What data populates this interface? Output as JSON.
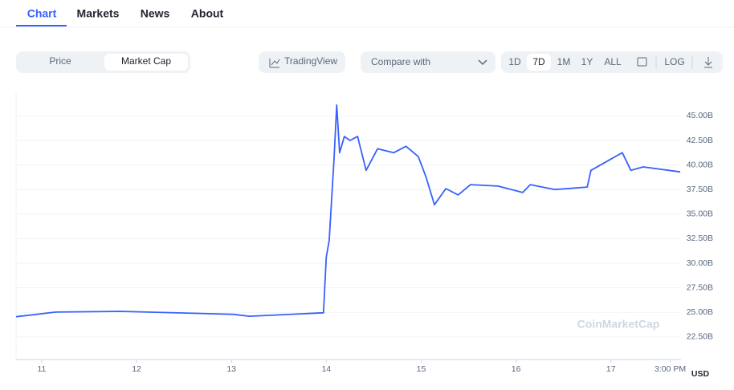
{
  "nav": {
    "tabs": [
      "Chart",
      "Markets",
      "News",
      "About"
    ]
  },
  "controls": {
    "toggle": [
      "Price",
      "Market Cap"
    ],
    "tradingview": "TradingView",
    "compare": "Compare with",
    "ranges": [
      "1D",
      "7D",
      "1M",
      "1Y",
      "ALL"
    ],
    "log": "LOG"
  },
  "chart_data": {
    "type": "line",
    "watermark": "CoinMarketCap",
    "currency": "USD",
    "series": [
      {
        "color": "#3861fb",
        "x": [
          10.73,
          11.15,
          11.83,
          13.02,
          13.19,
          13.97,
          14.0,
          14.03,
          14.08,
          14.11,
          14.14,
          14.19,
          14.25,
          14.33,
          14.42,
          14.54,
          14.71,
          14.84,
          14.97,
          15.05,
          15.14,
          15.26,
          15.39,
          15.52,
          15.81,
          16.07,
          16.15,
          16.41,
          16.75,
          16.79,
          17.0,
          17.12,
          17.21,
          17.34,
          17.73
        ],
        "values": [
          24.55,
          25.03,
          25.1,
          24.8,
          24.6,
          24.95,
          30.65,
          32.3,
          40.4,
          46.1,
          41.25,
          42.9,
          42.5,
          42.9,
          39.45,
          41.65,
          41.25,
          41.9,
          40.85,
          38.8,
          35.95,
          37.6,
          36.95,
          38.0,
          37.85,
          37.2,
          38.0,
          37.5,
          37.75,
          39.45,
          40.6,
          41.25,
          39.45,
          39.8,
          39.3
        ]
      }
    ],
    "xlim": [
      10.73,
      17.73
    ],
    "xticks": [
      11,
      12,
      13,
      14,
      15,
      16,
      17,
      {
        "value": 17.625,
        "label": "3:00 PM"
      }
    ],
    "ylim": [
      20.2,
      47.4
    ],
    "yticks": [
      {
        "value": 22.5,
        "label": "22.50B"
      },
      {
        "value": 25,
        "label": "25.00B"
      },
      {
        "value": 27.5,
        "label": "27.50B"
      },
      {
        "value": 30,
        "label": "30.00B"
      },
      {
        "value": 32.5,
        "label": "32.50B"
      },
      {
        "value": 35,
        "label": "35.00B"
      },
      {
        "value": 37.5,
        "label": "37.50B"
      },
      {
        "value": 40,
        "label": "40.00B"
      },
      {
        "value": 42.5,
        "label": "42.50B"
      },
      {
        "value": 45,
        "label": "45.00B"
      }
    ],
    "grid": true
  }
}
